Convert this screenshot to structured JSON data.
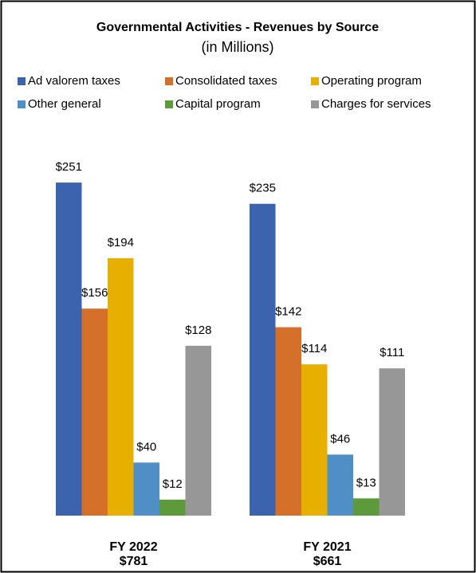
{
  "chart_data": {
    "type": "bar",
    "title": "Governmental Activities - Revenues by Source",
    "subtitle": "(in Millions)",
    "categories": [
      "FY 2022",
      "FY 2021"
    ],
    "totals": [
      781,
      661
    ],
    "total_labels": [
      "$781",
      "$661"
    ],
    "ylim": [
      0,
      300
    ],
    "series": [
      {
        "name": "Ad valorem taxes",
        "color": "#3c64ae",
        "values": [
          251,
          235
        ],
        "value_labels": [
          "$251",
          "$235"
        ]
      },
      {
        "name": "Consolidated taxes",
        "color": "#d5702b",
        "values": [
          156,
          142
        ],
        "value_labels": [
          "$156",
          "$142"
        ]
      },
      {
        "name": "Operating program",
        "color": "#e7b000",
        "values": [
          194,
          114
        ],
        "value_labels": [
          "$194",
          "$114"
        ]
      },
      {
        "name": "Other general",
        "color": "#4f8fc6",
        "values": [
          40,
          46
        ],
        "value_labels": [
          "$40",
          "$46"
        ]
      },
      {
        "name": "Capital program",
        "color": "#5c9a3c",
        "values": [
          12,
          13
        ],
        "value_labels": [
          "$12",
          "$13"
        ]
      },
      {
        "name": "Charges for services",
        "color": "#979797",
        "values": [
          128,
          111
        ],
        "value_labels": [
          "$128",
          "$111"
        ]
      }
    ]
  }
}
